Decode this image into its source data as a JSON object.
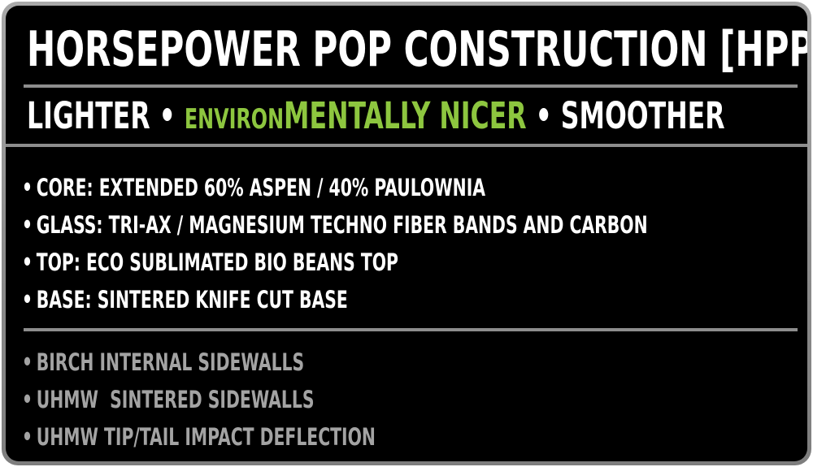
{
  "title": "HORSEPOWER POP CONSTRUCTION [HPP]",
  "tagline": {
    "part1": "LIGHTER",
    "separator": "•",
    "part2_small": "ENVIRON",
    "part2_large": "MENTALLY NICER",
    "part3": "SMOOTHER"
  },
  "bullet_glyph": "•",
  "specs": [
    "CORE: EXTENDED 60% ASPEN / 40% PAULOWNIA",
    "GLASS: TRI-AX / MAGNESIUM TECHNO FIBER BANDS AND CARBON",
    "TOP: ECO SUBLIMATED BIO BEANS TOP",
    "BASE: SINTERED KNIFE CUT BASE"
  ],
  "features": [
    "BIRCH INTERNAL SIDEWALLS",
    "UHMW  SINTERED SIDEWALLS",
    "UHMW TIP/TAIL IMPACT DEFLECTION"
  ],
  "colors": {
    "background": "#000000",
    "frame": "#8e8e8e",
    "text_primary": "#ffffff",
    "text_accent": "#8dc63f",
    "text_muted": "#a3a3a3"
  }
}
